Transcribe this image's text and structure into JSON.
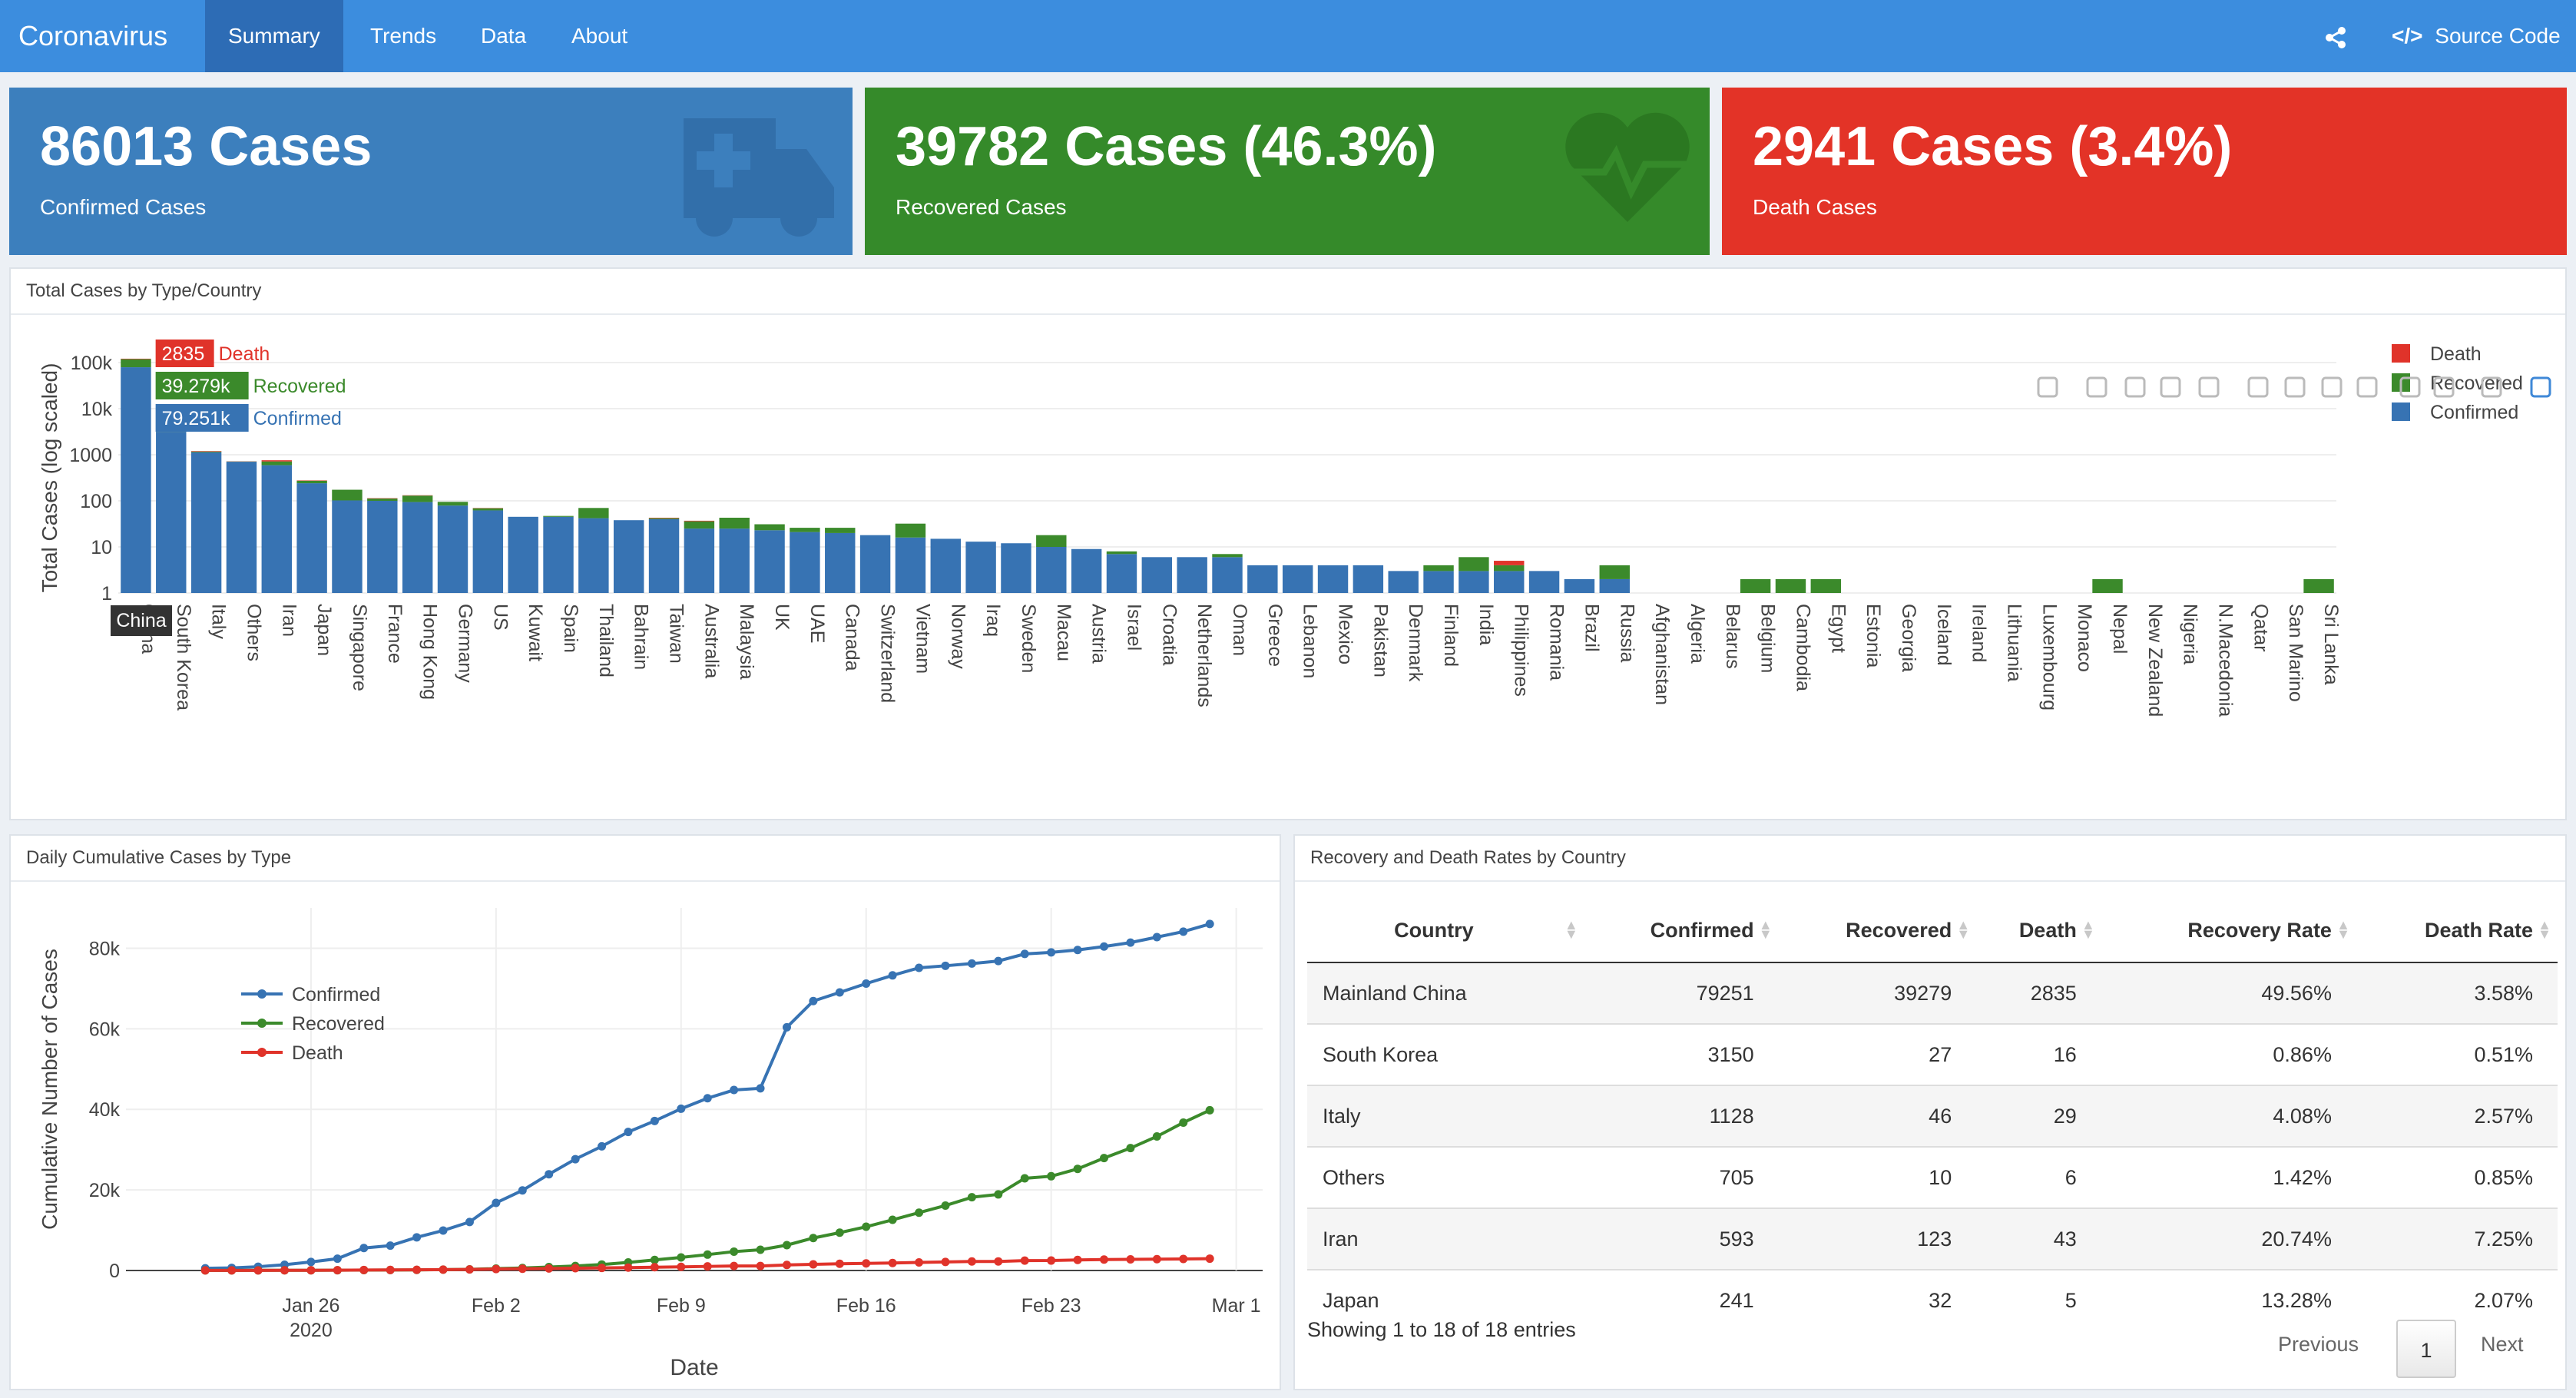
{
  "nav": {
    "brand": "Coronavirus",
    "tabs": [
      "Summary",
      "Trends",
      "Data",
      "About"
    ],
    "active_tab": "Summary",
    "source_code": "Source Code",
    "share_icon": "share-icon",
    "code_icon": "code-icon"
  },
  "boxes": {
    "confirmed": {
      "value": "86013 Cases",
      "label": "Confirmed Cases",
      "color": "#3c7fbd",
      "icon": "ambulance-icon"
    },
    "recovered": {
      "value": "39782 Cases (46.3%)",
      "label": "Recovered Cases",
      "color": "#358a2a",
      "icon": "heartbeat-icon"
    },
    "death": {
      "value": "2941 Cases (3.4%)",
      "label": "Death Cases",
      "color": "#e33327"
    }
  },
  "panels": {
    "bar_title": "Total Cases by Type/Country",
    "line_title": "Daily Cumulative Cases by Type",
    "table_title": "Recovery and Death Rates by Country"
  },
  "colors": {
    "confirmed": "#3773b3",
    "recovered": "#3b8a2b",
    "death": "#e0332a"
  },
  "chart_data": [
    {
      "type": "bar",
      "stacked": true,
      "ylabel": "Total Cases (log scaled)",
      "yscale": "log",
      "ylim": [
        1,
        100000
      ],
      "yticks": [
        "1",
        "10",
        "100",
        "1000",
        "10k",
        "100k"
      ],
      "legend": [
        "Death",
        "Recovered",
        "Confirmed"
      ],
      "legend_position": "top-right",
      "hover_labels": {
        "death": "2835",
        "recovered": "39.279k",
        "confirmed": "79.251k",
        "category": "China"
      },
      "categories": [
        "China",
        "South Korea",
        "Italy",
        "Others",
        "Iran",
        "Japan",
        "Singapore",
        "France",
        "Hong Kong",
        "Germany",
        "US",
        "Kuwait",
        "Spain",
        "Thailand",
        "Bahrain",
        "Taiwan",
        "Australia",
        "Malaysia",
        "UK",
        "UAE",
        "Canada",
        "Switzerland",
        "Vietnam",
        "Norway",
        "Iraq",
        "Sweden",
        "Macau",
        "Austria",
        "Israel",
        "Croatia",
        "Netherlands",
        "Oman",
        "Greece",
        "Lebanon",
        "Mexico",
        "Pakistan",
        "Denmark",
        "Finland",
        "India",
        "Philippines",
        "Romania",
        "Brazil",
        "Russia",
        "Afghanistan",
        "Algeria",
        "Belarus",
        "Belgium",
        "Cambodia",
        "Egypt",
        "Estonia",
        "Georgia",
        "Iceland",
        "Ireland",
        "Lithuania",
        "Luxembourg",
        "Monaco",
        "Nepal",
        "New Zealand",
        "Nigeria",
        "N.Macedonia",
        "Qatar",
        "San Marino",
        "Sri Lanka"
      ],
      "series": [
        {
          "name": "Confirmed",
          "values": [
            79251,
            3150,
            1128,
            705,
            593,
            241,
            102,
            100,
            94,
            79,
            62,
            45,
            45,
            42,
            38,
            40,
            25,
            25,
            23,
            21,
            20,
            18,
            16,
            15,
            13,
            12,
            10,
            9,
            7,
            6,
            6,
            6,
            4,
            4,
            4,
            4,
            3,
            3,
            3,
            3,
            3,
            2,
            2,
            1,
            1,
            1,
            1,
            1,
            1,
            1,
            1,
            1,
            1,
            1,
            1,
            1,
            1,
            1,
            1,
            1,
            1,
            1,
            1
          ]
        },
        {
          "name": "Recovered",
          "values": [
            39279,
            27,
            46,
            10,
            123,
            32,
            72,
            12,
            36,
            16,
            7,
            0,
            2,
            28,
            0,
            2,
            11,
            18,
            8,
            5,
            6,
            0,
            16,
            0,
            0,
            0,
            8,
            0,
            1,
            0,
            0,
            1,
            0,
            0,
            0,
            0,
            0,
            1,
            3,
            1,
            0,
            0,
            2,
            0,
            0,
            0,
            1,
            1,
            1,
            0,
            0,
            0,
            0,
            0,
            0,
            0,
            1,
            0,
            0,
            0,
            0,
            0,
            1
          ]
        },
        {
          "name": "Death",
          "values": [
            2835,
            16,
            29,
            6,
            43,
            5,
            0,
            2,
            2,
            0,
            1,
            0,
            0,
            0,
            0,
            1,
            1,
            0,
            0,
            0,
            0,
            0,
            0,
            0,
            0,
            0,
            0,
            0,
            0,
            0,
            0,
            0,
            0,
            0,
            0,
            0,
            0,
            0,
            0,
            1,
            0,
            0,
            0,
            0,
            0,
            0,
            0,
            0,
            0,
            0,
            0,
            0,
            0,
            0,
            0,
            0,
            0,
            0,
            0,
            0,
            0,
            0,
            0
          ]
        }
      ]
    },
    {
      "type": "line",
      "xlabel": "Date",
      "ylabel": "Cumulative Number of Cases",
      "xticks": [
        "Jan 26",
        "Feb 2",
        "Feb 9",
        "Feb 16",
        "Feb 23",
        "Mar 1"
      ],
      "xtick_year": "2020",
      "yticks": [
        "0",
        "20k",
        "40k",
        "60k",
        "80k"
      ],
      "ylim": [
        0,
        90000
      ],
      "legend_position": "top-left",
      "x": [
        "2020-01-22",
        "2020-01-23",
        "2020-01-24",
        "2020-01-25",
        "2020-01-26",
        "2020-01-27",
        "2020-01-28",
        "2020-01-29",
        "2020-01-30",
        "2020-01-31",
        "2020-02-01",
        "2020-02-02",
        "2020-02-03",
        "2020-02-04",
        "2020-02-05",
        "2020-02-06",
        "2020-02-07",
        "2020-02-08",
        "2020-02-09",
        "2020-02-10",
        "2020-02-11",
        "2020-02-12",
        "2020-02-13",
        "2020-02-14",
        "2020-02-15",
        "2020-02-16",
        "2020-02-17",
        "2020-02-18",
        "2020-02-19",
        "2020-02-20",
        "2020-02-21",
        "2020-02-22",
        "2020-02-23",
        "2020-02-24",
        "2020-02-25",
        "2020-02-26",
        "2020-02-27",
        "2020-02-28",
        "2020-02-29"
      ],
      "series": [
        {
          "name": "Confirmed",
          "values": [
            555,
            653,
            941,
            1434,
            2118,
            2927,
            5578,
            6166,
            8234,
            9927,
            12038,
            16787,
            19881,
            23892,
            27635,
            30817,
            34391,
            37120,
            40150,
            42762,
            44802,
            45221,
            60368,
            66885,
            69030,
            71224,
            73258,
            75136,
            75639,
            76197,
            76823,
            78579,
            78965,
            79568,
            80413,
            81395,
            82754,
            84120,
            86013
          ]
        },
        {
          "name": "Recovered",
          "values": [
            28,
            30,
            36,
            39,
            52,
            61,
            107,
            126,
            143,
            222,
            284,
            472,
            623,
            852,
            1124,
            1487,
            2011,
            2616,
            3244,
            3946,
            4683,
            5150,
            6295,
            8058,
            9395,
            10865,
            12583,
            14352,
            16121,
            18177,
            18890,
            22886,
            23394,
            25227,
            27905,
            30384,
            33277,
            36711,
            39782
          ]
        },
        {
          "name": "Death",
          "values": [
            17,
            18,
            26,
            42,
            56,
            82,
            131,
            133,
            171,
            213,
            259,
            362,
            426,
            492,
            564,
            634,
            719,
            806,
            906,
            1013,
            1113,
            1118,
            1371,
            1523,
            1666,
            1770,
            1868,
            2007,
            2122,
            2247,
            2251,
            2458,
            2469,
            2629,
            2708,
            2770,
            2814,
            2872,
            2941
          ]
        }
      ]
    }
  ],
  "table": {
    "columns": [
      "Country",
      "Confirmed",
      "Recovered",
      "Death",
      "Recovery Rate",
      "Death Rate"
    ],
    "rows": [
      [
        "Mainland China",
        "79251",
        "39279",
        "2835",
        "49.56%",
        "3.58%"
      ],
      [
        "South Korea",
        "3150",
        "27",
        "16",
        "0.86%",
        "0.51%"
      ],
      [
        "Italy",
        "1128",
        "46",
        "29",
        "4.08%",
        "2.57%"
      ],
      [
        "Others",
        "705",
        "10",
        "6",
        "1.42%",
        "0.85%"
      ],
      [
        "Iran",
        "593",
        "123",
        "43",
        "20.74%",
        "7.25%"
      ],
      [
        "Japan",
        "241",
        "32",
        "5",
        "13.28%",
        "2.07%"
      ]
    ],
    "info": "Showing 1 to 18 of 18 entries",
    "pager": {
      "previous": "Previous",
      "page": "1",
      "next": "Next"
    }
  }
}
